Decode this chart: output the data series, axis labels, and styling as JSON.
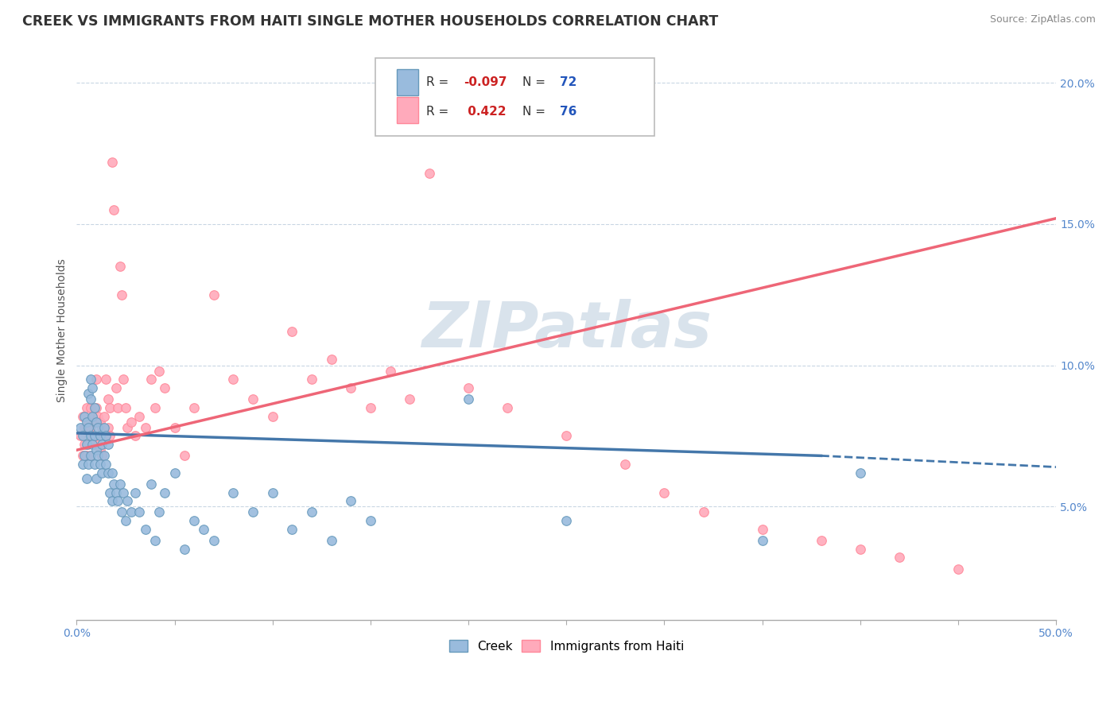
{
  "title": "CREEK VS IMMIGRANTS FROM HAITI SINGLE MOTHER HOUSEHOLDS CORRELATION CHART",
  "source": "Source: ZipAtlas.com",
  "ylabel": "Single Mother Households",
  "xmin": 0.0,
  "xmax": 0.5,
  "ymin": 0.01,
  "ymax": 0.215,
  "yticks": [
    0.05,
    0.1,
    0.15,
    0.2
  ],
  "ytick_labels": [
    "5.0%",
    "10.0%",
    "15.0%",
    "20.0%"
  ],
  "legend_r_blue": "-0.097",
  "legend_n_blue": "72",
  "legend_r_pink": "0.422",
  "legend_n_pink": "76",
  "blue_color": "#99BBDD",
  "pink_color": "#FFAABB",
  "blue_edge_color": "#6699BB",
  "pink_edge_color": "#FF8899",
  "blue_line_color": "#4477AA",
  "pink_line_color": "#EE6677",
  "watermark": "ZIPatlas",
  "blue_scatter": [
    [
      0.002,
      0.078
    ],
    [
      0.003,
      0.075
    ],
    [
      0.003,
      0.065
    ],
    [
      0.004,
      0.082
    ],
    [
      0.004,
      0.068
    ],
    [
      0.005,
      0.08
    ],
    [
      0.005,
      0.072
    ],
    [
      0.005,
      0.06
    ],
    [
      0.006,
      0.09
    ],
    [
      0.006,
      0.078
    ],
    [
      0.006,
      0.065
    ],
    [
      0.007,
      0.095
    ],
    [
      0.007,
      0.088
    ],
    [
      0.007,
      0.075
    ],
    [
      0.007,
      0.068
    ],
    [
      0.008,
      0.092
    ],
    [
      0.008,
      0.082
    ],
    [
      0.008,
      0.072
    ],
    [
      0.009,
      0.085
    ],
    [
      0.009,
      0.075
    ],
    [
      0.009,
      0.065
    ],
    [
      0.01,
      0.08
    ],
    [
      0.01,
      0.07
    ],
    [
      0.01,
      0.06
    ],
    [
      0.011,
      0.078
    ],
    [
      0.011,
      0.068
    ],
    [
      0.012,
      0.075
    ],
    [
      0.012,
      0.065
    ],
    [
      0.013,
      0.072
    ],
    [
      0.013,
      0.062
    ],
    [
      0.014,
      0.078
    ],
    [
      0.014,
      0.068
    ],
    [
      0.015,
      0.075
    ],
    [
      0.015,
      0.065
    ],
    [
      0.016,
      0.072
    ],
    [
      0.016,
      0.062
    ],
    [
      0.017,
      0.055
    ],
    [
      0.018,
      0.052
    ],
    [
      0.018,
      0.062
    ],
    [
      0.019,
      0.058
    ],
    [
      0.02,
      0.055
    ],
    [
      0.021,
      0.052
    ],
    [
      0.022,
      0.058
    ],
    [
      0.023,
      0.048
    ],
    [
      0.024,
      0.055
    ],
    [
      0.025,
      0.045
    ],
    [
      0.026,
      0.052
    ],
    [
      0.028,
      0.048
    ],
    [
      0.03,
      0.055
    ],
    [
      0.032,
      0.048
    ],
    [
      0.035,
      0.042
    ],
    [
      0.038,
      0.058
    ],
    [
      0.04,
      0.038
    ],
    [
      0.042,
      0.048
    ],
    [
      0.045,
      0.055
    ],
    [
      0.05,
      0.062
    ],
    [
      0.055,
      0.035
    ],
    [
      0.06,
      0.045
    ],
    [
      0.065,
      0.042
    ],
    [
      0.07,
      0.038
    ],
    [
      0.08,
      0.055
    ],
    [
      0.09,
      0.048
    ],
    [
      0.1,
      0.055
    ],
    [
      0.11,
      0.042
    ],
    [
      0.12,
      0.048
    ],
    [
      0.13,
      0.038
    ],
    [
      0.14,
      0.052
    ],
    [
      0.15,
      0.045
    ],
    [
      0.2,
      0.088
    ],
    [
      0.25,
      0.045
    ],
    [
      0.35,
      0.038
    ],
    [
      0.4,
      0.062
    ]
  ],
  "pink_scatter": [
    [
      0.002,
      0.075
    ],
    [
      0.003,
      0.082
    ],
    [
      0.003,
      0.068
    ],
    [
      0.004,
      0.078
    ],
    [
      0.004,
      0.072
    ],
    [
      0.005,
      0.085
    ],
    [
      0.005,
      0.078
    ],
    [
      0.005,
      0.068
    ],
    [
      0.006,
      0.08
    ],
    [
      0.006,
      0.072
    ],
    [
      0.007,
      0.085
    ],
    [
      0.007,
      0.078
    ],
    [
      0.007,
      0.068
    ],
    [
      0.008,
      0.082
    ],
    [
      0.008,
      0.075
    ],
    [
      0.009,
      0.08
    ],
    [
      0.009,
      0.072
    ],
    [
      0.01,
      0.095
    ],
    [
      0.01,
      0.085
    ],
    [
      0.01,
      0.075
    ],
    [
      0.011,
      0.082
    ],
    [
      0.011,
      0.072
    ],
    [
      0.012,
      0.08
    ],
    [
      0.012,
      0.07
    ],
    [
      0.013,
      0.078
    ],
    [
      0.013,
      0.068
    ],
    [
      0.014,
      0.082
    ],
    [
      0.015,
      0.075
    ],
    [
      0.015,
      0.095
    ],
    [
      0.016,
      0.088
    ],
    [
      0.016,
      0.078
    ],
    [
      0.017,
      0.085
    ],
    [
      0.017,
      0.075
    ],
    [
      0.018,
      0.172
    ],
    [
      0.019,
      0.155
    ],
    [
      0.02,
      0.092
    ],
    [
      0.021,
      0.085
    ],
    [
      0.022,
      0.135
    ],
    [
      0.023,
      0.125
    ],
    [
      0.024,
      0.095
    ],
    [
      0.025,
      0.085
    ],
    [
      0.026,
      0.078
    ],
    [
      0.028,
      0.08
    ],
    [
      0.03,
      0.075
    ],
    [
      0.032,
      0.082
    ],
    [
      0.035,
      0.078
    ],
    [
      0.038,
      0.095
    ],
    [
      0.04,
      0.085
    ],
    [
      0.042,
      0.098
    ],
    [
      0.045,
      0.092
    ],
    [
      0.05,
      0.078
    ],
    [
      0.055,
      0.068
    ],
    [
      0.06,
      0.085
    ],
    [
      0.07,
      0.125
    ],
    [
      0.08,
      0.095
    ],
    [
      0.09,
      0.088
    ],
    [
      0.1,
      0.082
    ],
    [
      0.11,
      0.112
    ],
    [
      0.12,
      0.095
    ],
    [
      0.13,
      0.102
    ],
    [
      0.14,
      0.092
    ],
    [
      0.15,
      0.085
    ],
    [
      0.16,
      0.098
    ],
    [
      0.17,
      0.088
    ],
    [
      0.18,
      0.168
    ],
    [
      0.2,
      0.092
    ],
    [
      0.22,
      0.085
    ],
    [
      0.25,
      0.075
    ],
    [
      0.28,
      0.065
    ],
    [
      0.3,
      0.055
    ],
    [
      0.32,
      0.048
    ],
    [
      0.35,
      0.042
    ],
    [
      0.38,
      0.038
    ],
    [
      0.4,
      0.035
    ],
    [
      0.42,
      0.032
    ],
    [
      0.45,
      0.028
    ]
  ]
}
